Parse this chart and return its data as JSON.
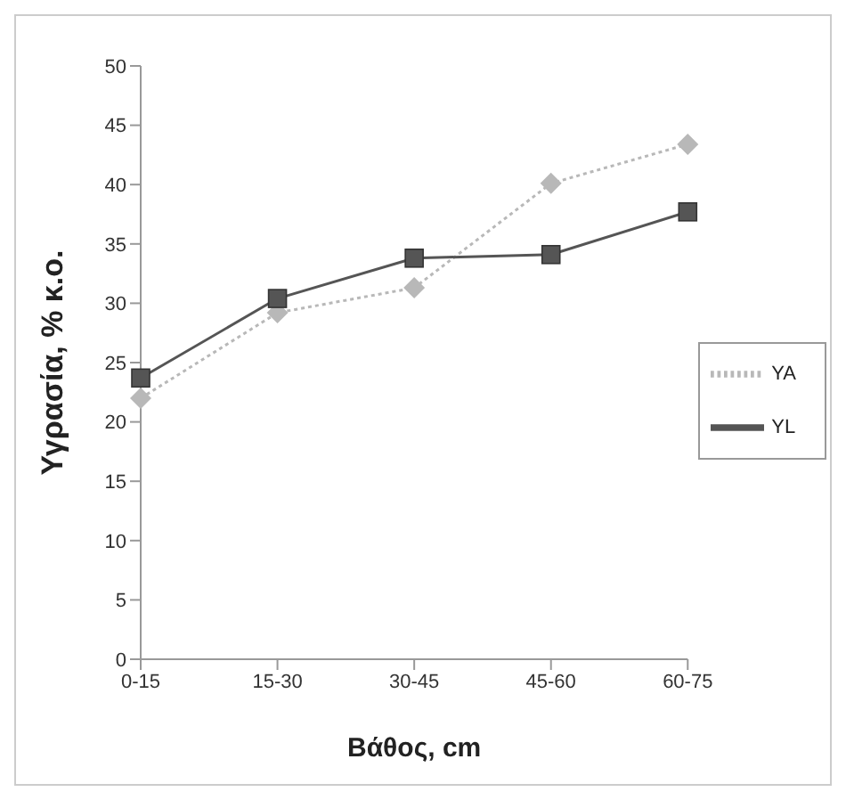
{
  "chart_data": {
    "type": "line",
    "xlabel": "Βάθος, cm",
    "ylabel": "Υγρασία, % κ.ο.",
    "categories": [
      "0-15",
      "15-30",
      "30-45",
      "45-60",
      "60-75"
    ],
    "series": [
      {
        "name": "YA",
        "color": "#b8b8b8",
        "values": [
          22,
          29.2,
          31.3,
          40.1,
          43.4
        ],
        "marker": "diamond",
        "line_style": "dotted"
      },
      {
        "name": "YL",
        "color": "#555555",
        "values": [
          23.7,
          30.4,
          33.8,
          34.1,
          37.7
        ],
        "marker": "square",
        "line_style": "solid"
      }
    ],
    "ylim": [
      0,
      50
    ],
    "yticks": [
      0,
      5,
      10,
      15,
      20,
      25,
      30,
      35,
      40,
      45,
      50
    ],
    "grid": false,
    "legend": "right"
  }
}
